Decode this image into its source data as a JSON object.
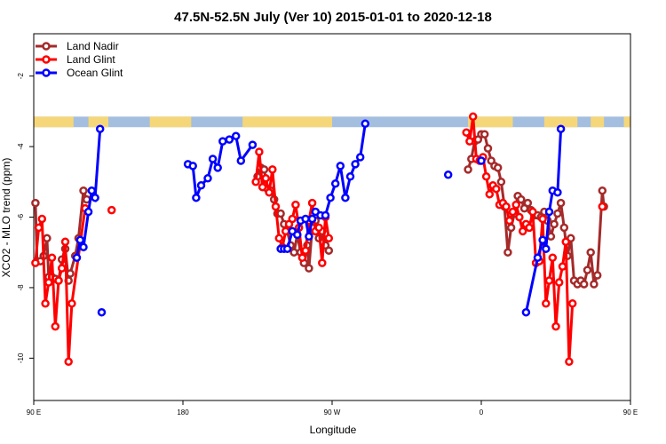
{
  "chart_data": {
    "type": "line",
    "title": "47.5N-52.5N July (Ver 10)   2015-01-01 to 2020-12-18",
    "xlabel": "Longitude",
    "ylabel": "XCO2 - MLO trend (ppm)",
    "xlim": [
      90,
      450
    ],
    "ylim": [
      -11.2,
      -0.8
    ],
    "x_ticks": [
      {
        "value": 90,
        "label": "90 E"
      },
      {
        "value": 180,
        "label": "180"
      },
      {
        "value": 270,
        "label": "90 W"
      },
      {
        "value": 360,
        "label": "0"
      },
      {
        "value": 450,
        "label": "90 E"
      },
      {
        "value": 540,
        "label": "180"
      }
    ],
    "y_ticks": [
      {
        "value": -2,
        "label": "-2"
      },
      {
        "value": -4,
        "label": "-4"
      },
      {
        "value": -6,
        "label": "-6"
      },
      {
        "value": -8,
        "label": "-8"
      },
      {
        "value": -10,
        "label": "-10"
      }
    ],
    "legend_position": "top-left",
    "land_ocean_strip": {
      "y_range": [
        -3.45,
        -3.15
      ],
      "land_color": "#f5d77a",
      "ocean_color": "#a4bedf"
    },
    "series": [
      {
        "name": "Land Nadir",
        "color": "#a52a2a",
        "points": [
          [
            91,
            -5.6
          ],
          [
            92,
            -7.25
          ],
          [
            94,
            -7.25
          ],
          [
            96,
            -7.1
          ],
          [
            98,
            -6.6
          ],
          [
            99,
            -7.7
          ],
          [
            101,
            -7.7
          ],
          [
            103,
            -7.75
          ],
          [
            105,
            -7.8
          ],
          [
            107,
            -7.2
          ],
          [
            109,
            -6.9
          ],
          [
            111,
            -7.8
          ],
          [
            112,
            -7.6
          ],
          [
            115,
            -7.1
          ],
          [
            117,
            -6.6
          ],
          [
            120,
            -5.25
          ],
          [
            122,
            -5.5
          ],
          [
            225,
            -4.85
          ],
          [
            227,
            -4.6
          ],
          [
            229,
            -4.65
          ],
          [
            231,
            -5.2
          ],
          [
            233,
            -5.25
          ],
          [
            235,
            -5.5
          ],
          [
            237,
            -5.9
          ],
          [
            239,
            -5.9
          ],
          [
            241,
            -6.2
          ],
          [
            243,
            -6.4
          ],
          [
            245,
            -6.8
          ],
          [
            247,
            -7.0
          ],
          [
            249,
            -6.5
          ],
          [
            251,
            -7.0
          ],
          [
            253,
            -7.3
          ],
          [
            255,
            -6.8
          ],
          [
            256,
            -7.45
          ],
          [
            258,
            -6.3
          ],
          [
            260,
            -6.1
          ],
          [
            262,
            -6.6
          ],
          [
            264,
            -6.4
          ],
          [
            266,
            -6.8
          ],
          [
            268,
            -6.95
          ],
          [
            352,
            -4.65
          ],
          [
            354,
            -4.35
          ],
          [
            356,
            -3.85
          ],
          [
            358,
            -3.8
          ],
          [
            360,
            -3.65
          ],
          [
            362,
            -3.65
          ],
          [
            364,
            -4.05
          ],
          [
            366,
            -4.4
          ],
          [
            368,
            -4.55
          ],
          [
            370,
            -4.6
          ],
          [
            372,
            -5.0
          ],
          [
            374,
            -5.7
          ],
          [
            376,
            -7.0
          ],
          [
            378,
            -6.3
          ],
          [
            380,
            -5.9
          ],
          [
            382,
            -5.4
          ],
          [
            384,
            -5.5
          ],
          [
            386,
            -5.75
          ],
          [
            388,
            -5.6
          ],
          [
            390,
            -5.8
          ],
          [
            392,
            -5.95
          ],
          [
            394,
            -5.95
          ],
          [
            396,
            -6.0
          ],
          [
            398,
            -5.85
          ],
          [
            400,
            -6.1
          ],
          [
            402,
            -6.55
          ],
          [
            404,
            -6.2
          ],
          [
            406,
            -5.9
          ],
          [
            408,
            -5.6
          ],
          [
            410,
            -6.3
          ],
          [
            412,
            -7.1
          ],
          [
            414,
            -6.6
          ],
          [
            416,
            -7.8
          ],
          [
            418,
            -7.9
          ],
          [
            420,
            -7.8
          ],
          [
            422,
            -7.9
          ],
          [
            424,
            -7.5
          ],
          [
            426,
            -7.0
          ],
          [
            428,
            -7.9
          ],
          [
            430,
            -7.65
          ],
          [
            433,
            -5.25
          ],
          [
            434,
            -5.7
          ]
        ]
      },
      {
        "name": "Land Glint",
        "color": "#ff0000",
        "points": [
          [
            91,
            -7.3
          ],
          [
            93,
            -6.3
          ],
          [
            95,
            -6.05
          ],
          [
            97,
            -8.45
          ],
          [
            99,
            -7.85
          ],
          [
            101,
            -7.15
          ],
          [
            103,
            -9.1
          ],
          [
            105,
            -7.8
          ],
          [
            107,
            -7.45
          ],
          [
            109,
            -6.7
          ],
          [
            111,
            -10.1
          ],
          [
            113,
            -8.45
          ],
          [
            121,
            -5.75
          ],
          [
            137,
            -5.8
          ],
          [
            224,
            -5.0
          ],
          [
            226,
            -4.15
          ],
          [
            228,
            -5.15
          ],
          [
            230,
            -4.9
          ],
          [
            232,
            -5.3
          ],
          [
            234,
            -4.65
          ],
          [
            236,
            -5.7
          ],
          [
            238,
            -6.6
          ],
          [
            240,
            -6.85
          ],
          [
            242,
            -6.4
          ],
          [
            244,
            -6.2
          ],
          [
            246,
            -6.05
          ],
          [
            248,
            -5.65
          ],
          [
            250,
            -6.3
          ],
          [
            252,
            -7.15
          ],
          [
            254,
            -6.95
          ],
          [
            256,
            -6.1
          ],
          [
            258,
            -5.6
          ],
          [
            260,
            -6.4
          ],
          [
            262,
            -6.3
          ],
          [
            264,
            -7.3
          ],
          [
            266,
            -6.0
          ],
          [
            268,
            -6.6
          ],
          [
            351,
            -3.6
          ],
          [
            353,
            -3.85
          ],
          [
            355,
            -3.15
          ],
          [
            357,
            -4.35
          ],
          [
            359,
            -4.4
          ],
          [
            361,
            -4.3
          ],
          [
            363,
            -4.85
          ],
          [
            365,
            -5.35
          ],
          [
            367,
            -5.1
          ],
          [
            369,
            -5.2
          ],
          [
            371,
            -5.65
          ],
          [
            373,
            -5.6
          ],
          [
            375,
            -5.7
          ],
          [
            377,
            -6.1
          ],
          [
            379,
            -5.85
          ],
          [
            381,
            -5.65
          ],
          [
            383,
            -6.0
          ],
          [
            385,
            -6.4
          ],
          [
            387,
            -6.2
          ],
          [
            389,
            -6.3
          ],
          [
            391,
            -5.85
          ],
          [
            393,
            -7.3
          ],
          [
            395,
            -7.25
          ],
          [
            397,
            -6.05
          ],
          [
            399,
            -8.45
          ],
          [
            401,
            -7.8
          ],
          [
            403,
            -7.15
          ],
          [
            405,
            -9.1
          ],
          [
            407,
            -7.85
          ],
          [
            409,
            -7.4
          ],
          [
            411,
            -6.7
          ],
          [
            413,
            -10.1
          ],
          [
            415,
            -8.45
          ],
          [
            433,
            -5.7
          ]
        ]
      },
      {
        "name": "Ocean Glint",
        "color": "#0000ff",
        "points": [
          [
            116,
            -7.15
          ],
          [
            118,
            -6.65
          ],
          [
            120,
            -6.85
          ],
          [
            123,
            -5.85
          ],
          [
            125,
            -5.25
          ],
          [
            127,
            -5.45
          ],
          [
            130,
            -3.5
          ],
          [
            183,
            -4.5
          ],
          [
            186,
            -4.55
          ],
          [
            188,
            -5.45
          ],
          [
            191,
            -5.1
          ],
          [
            195,
            -4.9
          ],
          [
            198,
            -4.35
          ],
          [
            201,
            -4.6
          ],
          [
            204,
            -3.85
          ],
          [
            208,
            -3.8
          ],
          [
            212,
            -3.7
          ],
          [
            215,
            -4.4
          ],
          [
            222,
            -3.95
          ],
          [
            239,
            -6.9
          ],
          [
            241,
            -6.9
          ],
          [
            243,
            -6.9
          ],
          [
            246,
            -6.4
          ],
          [
            249,
            -6.5
          ],
          [
            251,
            -6.1
          ],
          [
            254,
            -6.05
          ],
          [
            256,
            -6.55
          ],
          [
            258,
            -6.05
          ],
          [
            260,
            -5.85
          ],
          [
            263,
            -5.95
          ],
          [
            266,
            -5.95
          ],
          [
            269,
            -5.45
          ],
          [
            272,
            -5.05
          ],
          [
            275,
            -4.55
          ],
          [
            278,
            -5.45
          ],
          [
            281,
            -4.85
          ],
          [
            284,
            -4.5
          ],
          [
            287,
            -4.3
          ],
          [
            290,
            -3.35
          ],
          [
            340,
            -4.8
          ],
          [
            360,
            -4.4
          ],
          [
            387,
            -8.7
          ],
          [
            394,
            -7.15
          ],
          [
            397,
            -6.65
          ],
          [
            399,
            -6.9
          ],
          [
            401,
            -5.85
          ],
          [
            403,
            -5.25
          ],
          [
            406,
            -5.3
          ],
          [
            408,
            -3.5
          ],
          [
            131,
            -8.7
          ]
        ]
      }
    ]
  }
}
